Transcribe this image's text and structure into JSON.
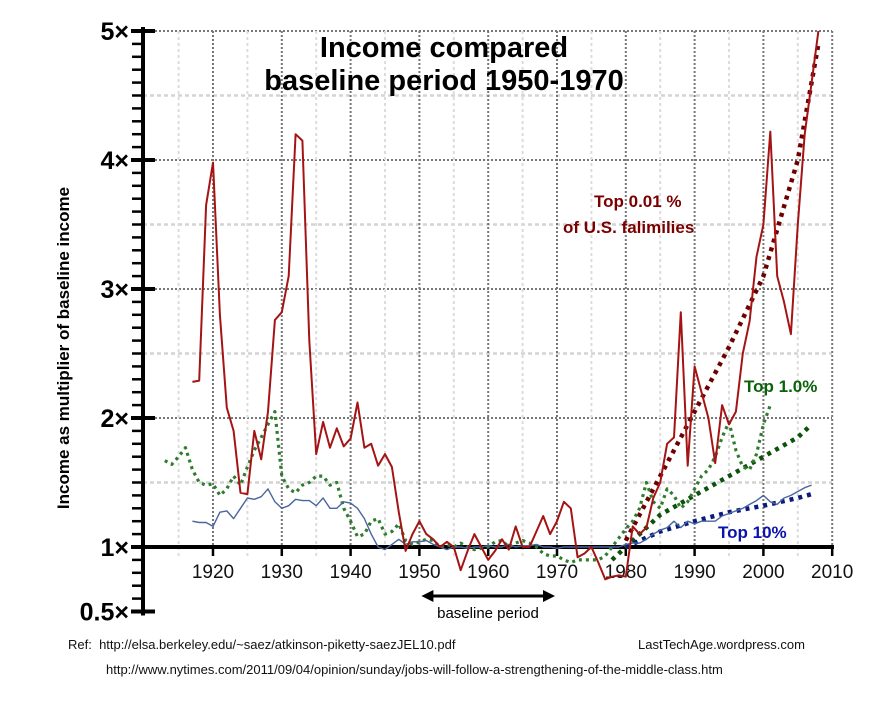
{
  "chart_data": {
    "type": "line",
    "title_lines": [
      "Income compared",
      "baseline period 1950-1970"
    ],
    "ylabel": "Income as multiplier of baseline income",
    "xlabel": "",
    "xlim": [
      1910,
      2010
    ],
    "ylim": [
      0.5,
      5
    ],
    "x_ticks": [
      "1920",
      "1930",
      "1940",
      "1950",
      "1960",
      "1970",
      "1980",
      "1990",
      "2000",
      "2010"
    ],
    "y_ticks": [
      {
        "value": 5,
        "label": "5×"
      },
      {
        "value": 4,
        "label": "4×"
      },
      {
        "value": 3,
        "label": "3×"
      },
      {
        "value": 2,
        "label": "2×"
      },
      {
        "value": 1,
        "label": "1×"
      },
      {
        "value": 0.5,
        "label": "0.5×"
      }
    ],
    "grid": true,
    "baseline_annotation": {
      "label": "baseline period",
      "from": 1950,
      "to": 1970
    },
    "series": [
      {
        "name": "Top 0.01 % of U.S. falimilies",
        "label_lines": [
          "Top 0.01 %",
          "of U.S. falimilies"
        ],
        "style": "solid",
        "color": "#a51414",
        "label_color": "#7a0000",
        "x_start": 1917,
        "values": [
          2.28,
          2.29,
          3.65,
          3.98,
          2.8,
          2.08,
          1.9,
          1.42,
          1.41,
          1.9,
          1.68,
          2.05,
          2.76,
          2.82,
          3.1,
          4.2,
          4.15,
          2.6,
          1.72,
          1.97,
          1.77,
          1.92,
          1.78,
          1.84,
          2.12,
          1.77,
          1.8,
          1.63,
          1.72,
          1.62,
          1.27,
          0.97,
          1.1,
          1.2,
          1.1,
          1.06,
          1.0,
          1.04,
          1.0,
          0.82,
          0.97,
          1.1,
          1.0,
          0.9,
          0.97,
          1.06,
          0.98,
          1.16,
          1.0,
          1.0,
          1.12,
          1.24,
          1.1,
          1.2,
          1.35,
          1.3,
          0.92,
          0.95,
          1.0,
          0.88,
          0.75,
          0.77,
          0.78,
          0.77,
          1.16,
          1.1,
          1.15,
          1.38,
          1.5,
          1.8,
          1.85,
          2.82,
          1.63,
          2.4,
          2.2,
          2.0,
          1.65,
          2.1,
          1.95,
          2.05,
          2.5,
          2.75,
          3.25,
          3.5,
          4.22,
          3.1,
          2.9,
          2.65,
          3.5,
          4.2,
          4.6,
          5.0
        ]
      },
      {
        "name": "Top 1.0%",
        "label_lines": [
          "Top 1.0%"
        ],
        "style": "dotted",
        "color": "#2e7d2e",
        "label_color": "#0a620a",
        "x_start": 1913,
        "values": [
          1.67,
          1.64,
          1.7,
          1.77,
          1.6,
          1.5,
          1.48,
          1.49,
          1.4,
          1.45,
          1.55,
          1.48,
          1.62,
          1.75,
          1.85,
          1.95,
          2.05,
          1.55,
          1.45,
          1.42,
          1.48,
          1.5,
          1.55,
          1.55,
          1.48,
          1.5,
          1.3,
          1.2,
          1.08,
          1.1,
          1.2,
          1.22,
          1.1,
          1.12,
          1.18,
          1.05,
          1.02,
          1.04,
          1.06,
          1.05,
          1.0,
          1.02,
          1.0,
          1.03,
          1.0,
          0.98,
          0.99,
          1.0,
          1.04,
          1.05,
          1.0,
          1.03,
          1.05,
          1.03,
          1.0,
          0.95,
          0.93,
          0.93,
          0.9,
          0.88,
          0.9,
          0.9,
          0.9,
          0.9,
          0.93,
          1.0,
          1.07,
          1.14,
          1.2,
          1.3,
          1.5,
          1.35,
          1.3,
          1.45,
          1.4,
          1.3,
          1.35,
          1.45,
          1.55,
          1.6,
          1.7,
          1.85,
          1.97,
          1.75,
          1.62,
          1.6,
          1.72,
          1.95,
          2.1
        ]
      },
      {
        "name": "Top 10%",
        "label_lines": [
          "Top 10%"
        ],
        "style": "solid",
        "color": "#4a66a0",
        "label_color": "#0a14a8",
        "x_start": 1917,
        "values": [
          1.2,
          1.19,
          1.19,
          1.16,
          1.27,
          1.28,
          1.22,
          1.3,
          1.38,
          1.37,
          1.39,
          1.45,
          1.35,
          1.3,
          1.32,
          1.37,
          1.36,
          1.36,
          1.32,
          1.38,
          1.3,
          1.3,
          1.35,
          1.34,
          1.3,
          1.22,
          1.1,
          1.0,
          0.98,
          1.02,
          1.06,
          1.02,
          1.04,
          1.04,
          1.05,
          1.02,
          1.0,
          0.98,
          1.0,
          1.0,
          0.99,
          1.0,
          1.0,
          1.01,
          1.0,
          1.0,
          1.02,
          1.0,
          1.01,
          1.01,
          1.02,
          1.0,
          1.0,
          0.99,
          1.0,
          1.0,
          1.0,
          1.0,
          1.0,
          1.0,
          1.0,
          1.0,
          1.0,
          1.02,
          1.03,
          1.03,
          1.06,
          1.1,
          1.13,
          1.15,
          1.2,
          1.15,
          1.2,
          1.18,
          1.2,
          1.2,
          1.2,
          1.24,
          1.26,
          1.28,
          1.3,
          1.33,
          1.36,
          1.4,
          1.35,
          1.33,
          1.38,
          1.4,
          1.43,
          1.46,
          1.48
        ]
      }
    ],
    "trendlines": [
      {
        "name": "Top 0.01 % trend",
        "color": "#6e0000",
        "x": [
          1980,
          1985,
          1990,
          1995,
          2000,
          2005,
          2008
        ],
        "values": [
          1.05,
          1.55,
          2.05,
          2.55,
          3.1,
          4.0,
          4.9
        ]
      },
      {
        "name": "Top 1.0% trend",
        "color": "#0b520b",
        "x": [
          1978,
          1985,
          1990,
          1995,
          2000,
          2005,
          2007
        ],
        "values": [
          0.9,
          1.25,
          1.4,
          1.55,
          1.7,
          1.85,
          1.95
        ]
      },
      {
        "name": "Top 10% trend",
        "color": "#0a1a7a",
        "x": [
          1980,
          1985,
          1990,
          1995,
          2000,
          2005,
          2007
        ],
        "values": [
          1.0,
          1.12,
          1.2,
          1.27,
          1.32,
          1.38,
          1.41
        ]
      }
    ]
  },
  "references": {
    "ref_label": "Ref:",
    "ref_url_1": "http://elsa.berkeley.edu/~saez/atkinson-piketty-saezJEL10.pdf",
    "credit": "LastTechAge.wordpress.com",
    "ref_url_2": "http://www.nytimes.com/2011/09/04/opinion/sunday/jobs-will-follow-a-strengthening-of-the-middle-class.htm"
  }
}
